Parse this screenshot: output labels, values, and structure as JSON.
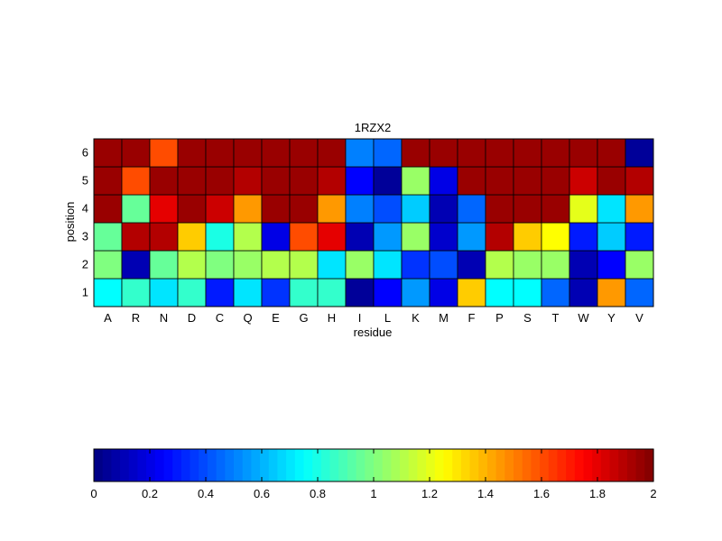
{
  "chart_data": {
    "type": "heatmap",
    "title": "1RZX2",
    "xlabel": "residue",
    "ylabel": "position",
    "x_categories": [
      "A",
      "R",
      "N",
      "D",
      "C",
      "Q",
      "E",
      "G",
      "H",
      "I",
      "L",
      "K",
      "M",
      "F",
      "P",
      "S",
      "T",
      "W",
      "Y",
      "V"
    ],
    "y_categories": [
      "1",
      "2",
      "3",
      "4",
      "5",
      "6"
    ],
    "colormap": "jet",
    "clim": [
      0,
      2
    ],
    "colorbar": {
      "orientation": "horizontal",
      "ticks": [
        0,
        0.2,
        0.4,
        0.6,
        0.8,
        1,
        1.2,
        1.4,
        1.6,
        1.8,
        2
      ],
      "tick_labels": [
        "0",
        "0.2",
        "0.4",
        "0.6",
        "0.8",
        "1",
        "1.2",
        "1.4",
        "1.6",
        "1.8",
        "2"
      ]
    },
    "values": [
      [
        0.75,
        0.85,
        0.7,
        0.85,
        0.3,
        0.7,
        0.35,
        0.85,
        0.85,
        0.05,
        0.25,
        0.55,
        0.2,
        1.35,
        0.75,
        0.75,
        0.45,
        0.1,
        1.45,
        0.45
      ],
      [
        1.0,
        0.1,
        0.95,
        1.1,
        1.0,
        1.05,
        1.1,
        1.1,
        0.7,
        1.05,
        0.7,
        0.35,
        0.4,
        0.1,
        1.1,
        1.05,
        1.05,
        0.1,
        0.25,
        1.05
      ],
      [
        0.95,
        1.9,
        1.9,
        1.35,
        0.8,
        1.1,
        0.2,
        1.6,
        1.8,
        0.1,
        0.55,
        1.05,
        0.15,
        0.55,
        1.9,
        1.35,
        1.25,
        0.3,
        0.65,
        0.3
      ],
      [
        1.95,
        0.95,
        1.8,
        1.95,
        1.85,
        1.45,
        1.95,
        1.95,
        1.45,
        0.5,
        0.4,
        0.65,
        0.1,
        0.45,
        1.95,
        1.95,
        1.95,
        1.2,
        0.7,
        1.45
      ],
      [
        1.95,
        1.6,
        1.95,
        1.95,
        1.95,
        1.9,
        1.95,
        1.95,
        1.9,
        0.25,
        0.05,
        1.05,
        0.2,
        1.95,
        1.95,
        1.95,
        1.95,
        1.85,
        1.95,
        1.9
      ],
      [
        1.95,
        1.95,
        1.6,
        1.95,
        1.95,
        1.95,
        1.95,
        1.95,
        1.95,
        0.5,
        0.45,
        1.95,
        1.95,
        1.95,
        1.95,
        1.95,
        1.95,
        1.95,
        1.95,
        0.05
      ]
    ]
  }
}
